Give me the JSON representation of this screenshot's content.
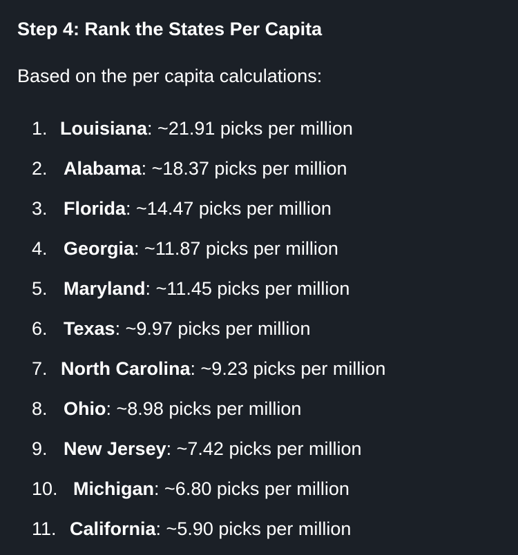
{
  "heading": "Step 4: Rank the States Per Capita",
  "intro": "Based on the per capita calculations:",
  "rankings": [
    {
      "number": "1.",
      "state": "Louisiana",
      "value": "~21.91 picks per million"
    },
    {
      "number": "2.",
      "state": "Alabama",
      "value": "~18.37 picks per million"
    },
    {
      "number": "3.",
      "state": "Florida",
      "value": "~14.47 picks per million"
    },
    {
      "number": "4.",
      "state": "Georgia",
      "value": "~11.87 picks per million"
    },
    {
      "number": "5.",
      "state": "Maryland",
      "value": "~11.45 picks per million"
    },
    {
      "number": "6.",
      "state": "Texas",
      "value": "~9.97 picks per million"
    },
    {
      "number": "7.",
      "state": "North Carolina",
      "value": "~9.23 picks per million"
    },
    {
      "number": "8.",
      "state": "Ohio",
      "value": "~8.98 picks per million"
    },
    {
      "number": "9.",
      "state": "New Jersey",
      "value": "~7.42 picks per million"
    },
    {
      "number": "10.",
      "state": "Michigan",
      "value": "~6.80 picks per million"
    },
    {
      "number": "11.",
      "state": "California",
      "value": "~5.90 picks per million"
    }
  ]
}
